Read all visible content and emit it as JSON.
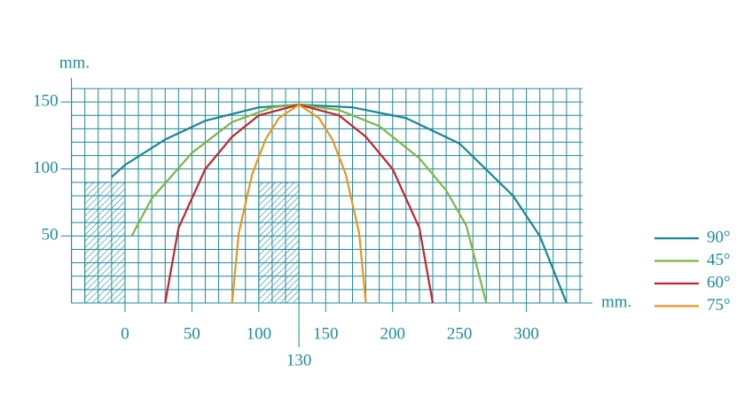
{
  "chart_data": {
    "type": "line",
    "x_label": "mm.",
    "y_label": "mm.",
    "xlim": [
      -40,
      342
    ],
    "ylim": [
      0,
      160
    ],
    "xticks": [
      0,
      50,
      100,
      150,
      200,
      250,
      300
    ],
    "yticks": [
      50,
      100,
      150
    ],
    "x_marker": 130,
    "grid": true,
    "grid_step": 10,
    "obstacles": [
      {
        "x": [
          -30,
          0
        ],
        "height": 90
      },
      {
        "x": [
          100,
          130
        ],
        "height": 90
      }
    ],
    "legend": "right",
    "series": [
      {
        "name": "90°",
        "color": "#178593",
        "x": [
          -10,
          0,
          30,
          60,
          100,
          130,
          170,
          210,
          250,
          290,
          310,
          330
        ],
        "values": [
          94,
          103,
          122,
          136,
          146,
          148,
          146,
          138,
          119,
          80,
          50,
          0
        ]
      },
      {
        "name": "45°",
        "color": "#7ab648",
        "x": [
          5,
          20,
          50,
          80,
          110,
          130,
          160,
          190,
          220,
          240,
          255,
          270
        ],
        "values": [
          50,
          78,
          112,
          135,
          146,
          148,
          144,
          132,
          108,
          84,
          58,
          0
        ]
      },
      {
        "name": "60°",
        "color": "#c0242f",
        "x": [
          30,
          40,
          60,
          80,
          100,
          130,
          160,
          180,
          200,
          220,
          230
        ],
        "values": [
          0,
          56,
          100,
          124,
          140,
          148,
          140,
          124,
          100,
          56,
          0
        ]
      },
      {
        "name": "75°",
        "color": "#e8961e",
        "x": [
          80,
          85,
          95,
          105,
          115,
          130,
          145,
          155,
          165,
          175,
          180
        ],
        "values": [
          0,
          52,
          96,
          122,
          138,
          148,
          138,
          122,
          96,
          52,
          0
        ]
      }
    ]
  }
}
